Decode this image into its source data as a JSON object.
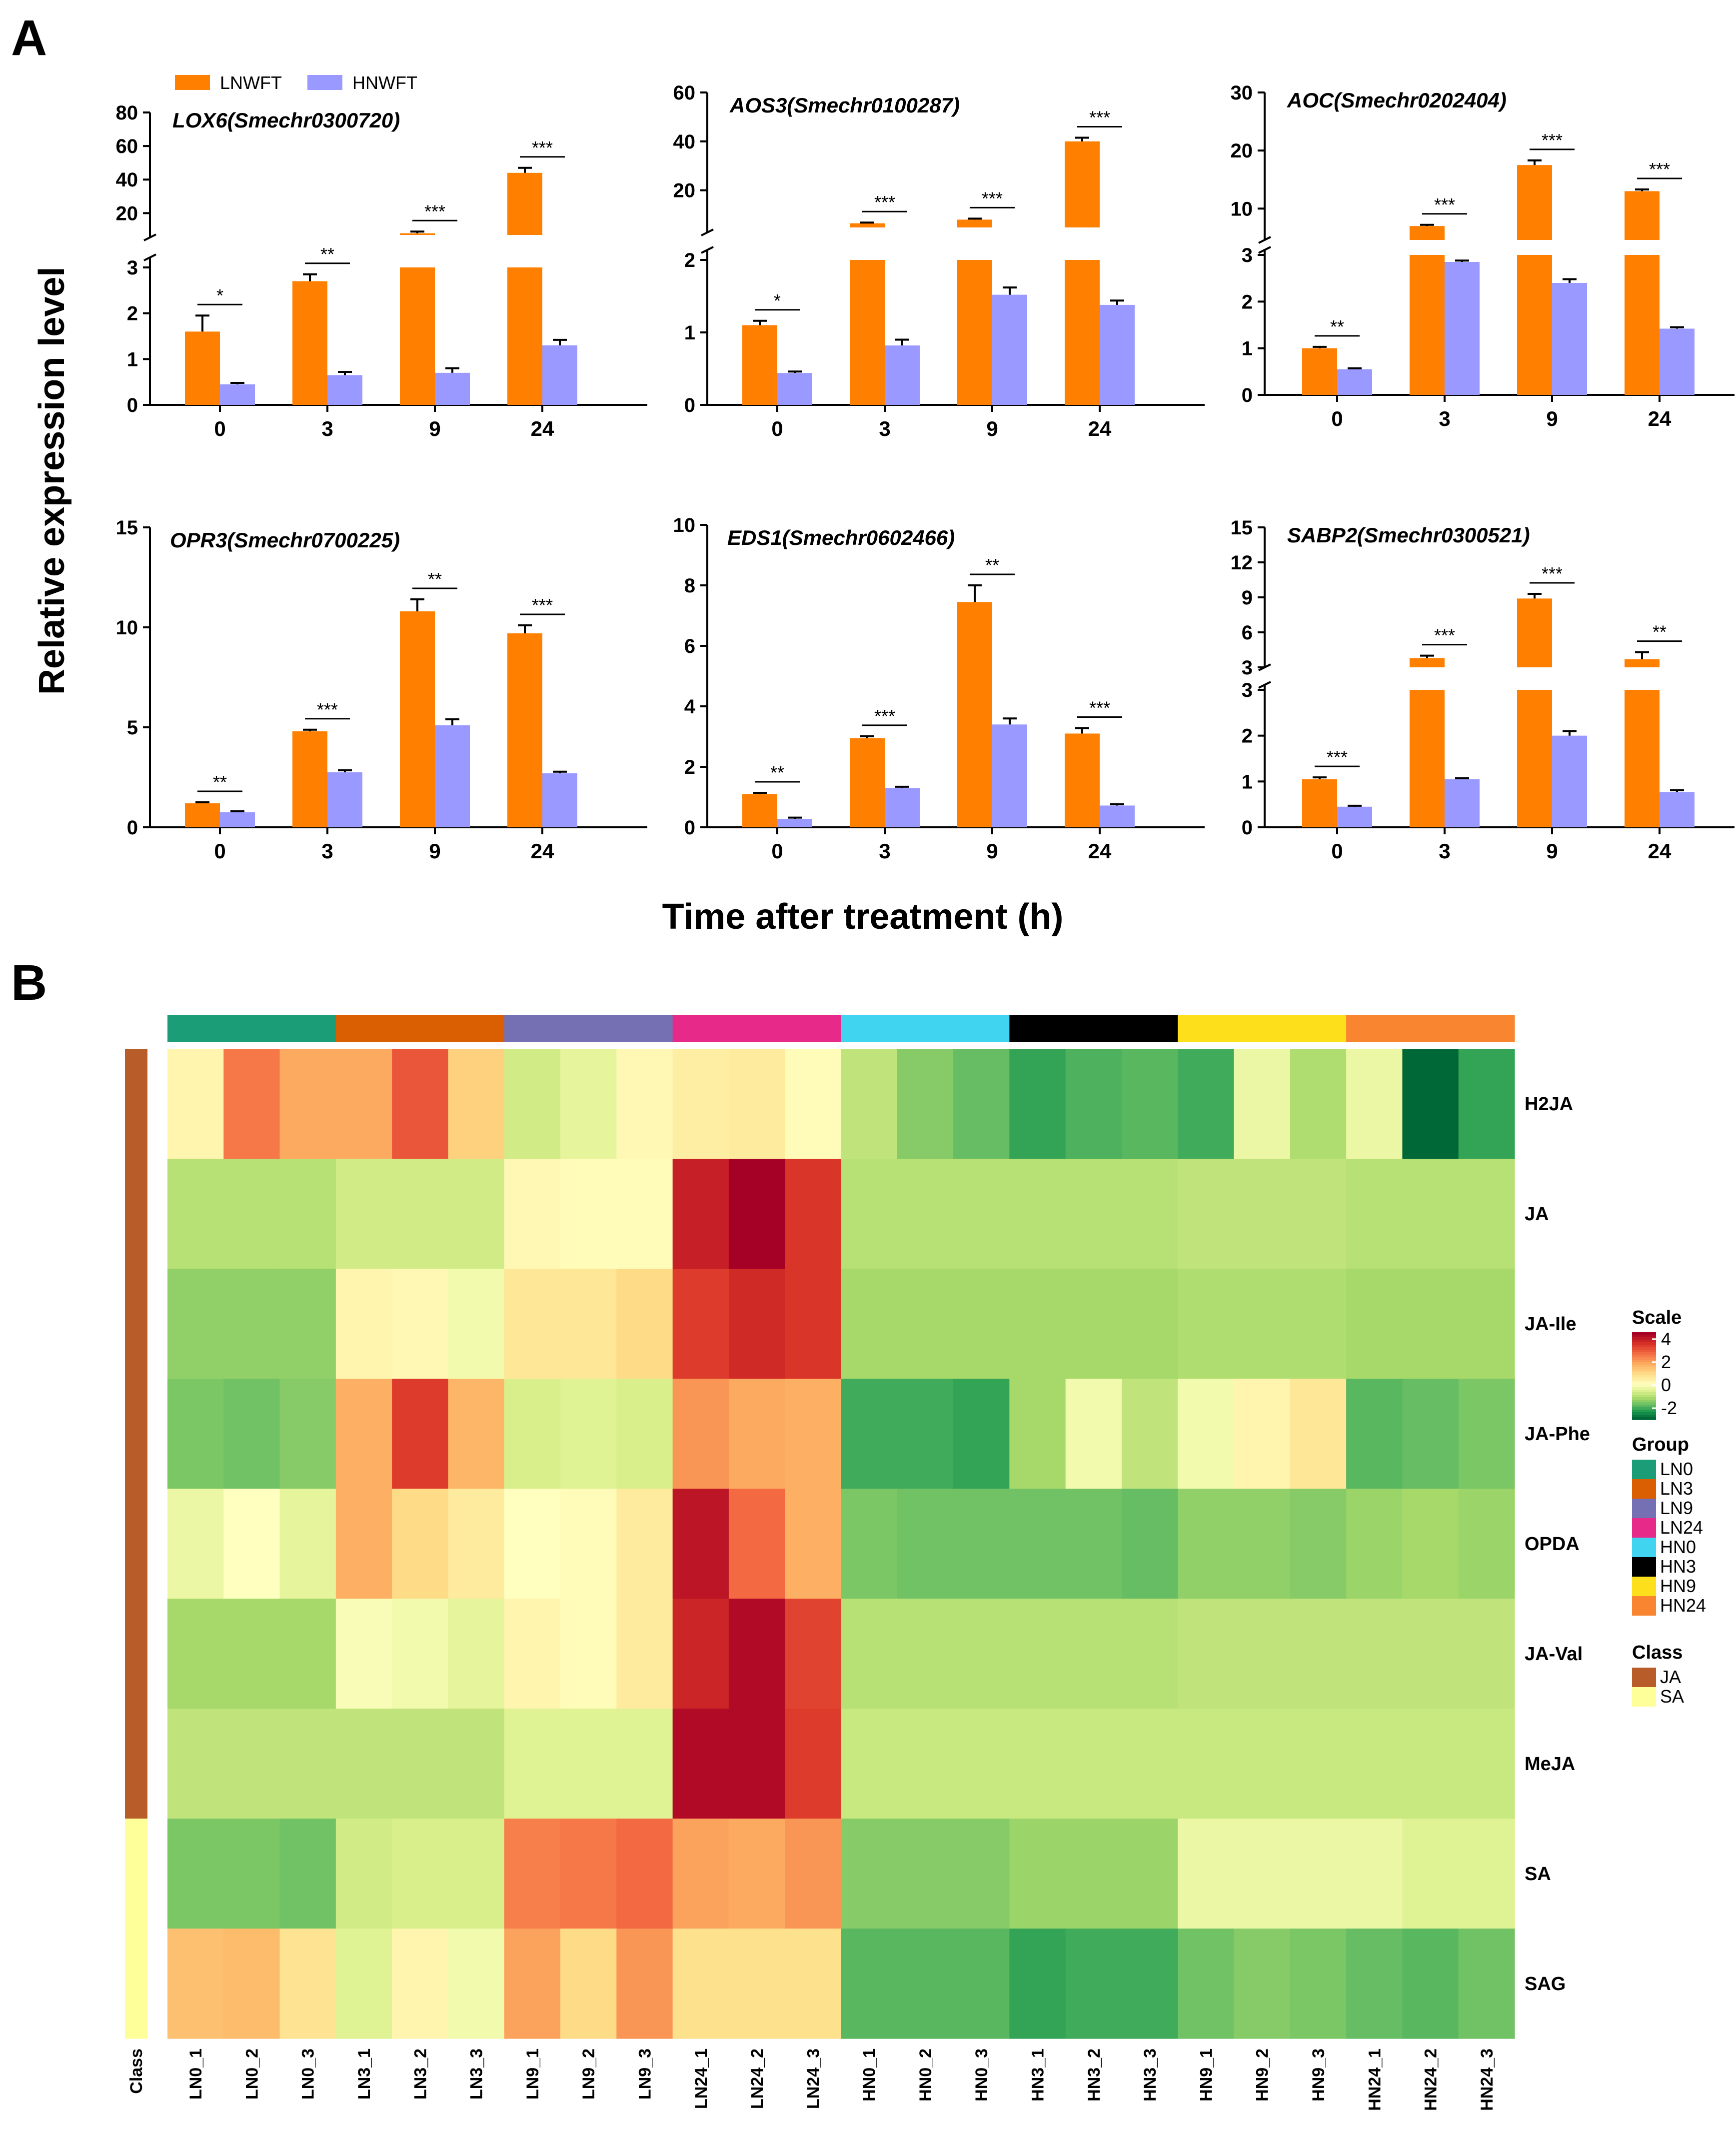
{
  "panel_labels": {
    "a": "A",
    "b": "B"
  },
  "panel_a": {
    "y_label": "Relative expression level",
    "x_label": "Time after treatment (h)",
    "legend": [
      {
        "name": "LNWFT",
        "color": "#ff8000"
      },
      {
        "name": "HNWFT",
        "color": "#9999ff"
      }
    ]
  },
  "chart_data": [
    {
      "type": "bar",
      "title": "LOX6(Smechr0300720)",
      "categories": [
        "0",
        "3",
        "9",
        "24"
      ],
      "series": [
        {
          "name": "LNWFT",
          "values": [
            1.6,
            2.7,
            8,
            44
          ],
          "errors": [
            0.35,
            0.15,
            1,
            3
          ]
        },
        {
          "name": "HNWFT",
          "values": [
            0.45,
            0.65,
            0.7,
            1.3
          ],
          "errors": [
            0.03,
            0.07,
            0.1,
            0.12
          ]
        }
      ],
      "significance": [
        "*",
        "**",
        "***",
        "***"
      ],
      "axis_break": {
        "lower": [
          0,
          3
        ],
        "upper": [
          0,
          80
        ]
      },
      "yticks_lower": [
        "0",
        "1",
        "2",
        "3"
      ],
      "yticks_upper": [
        "20",
        "40",
        "60",
        "80"
      ],
      "yticks_lower_values": [
        0,
        1,
        2,
        3
      ],
      "yticks_upper_values": [
        20,
        40,
        60,
        80
      ],
      "upper_visible_from": 7
    },
    {
      "type": "bar",
      "title": "AOS3(Smechr0100287)",
      "categories": [
        "0",
        "3",
        "9",
        "24"
      ],
      "series": [
        {
          "name": "LNWFT",
          "values": [
            1.1,
            6.5,
            8,
            40
          ],
          "errors": [
            0.06,
            0.3,
            0.4,
            1.5
          ]
        },
        {
          "name": "HNWFT",
          "values": [
            0.44,
            0.82,
            1.52,
            1.38
          ],
          "errors": [
            0.02,
            0.08,
            0.1,
            0.06
          ]
        }
      ],
      "significance": [
        "*",
        "***",
        "***",
        "***"
      ],
      "axis_break": {
        "lower": [
          0,
          2
        ],
        "upper": [
          0,
          60
        ]
      },
      "yticks_lower": [
        "0",
        "1",
        "2"
      ],
      "yticks_upper": [
        "20",
        "40",
        "60"
      ],
      "yticks_lower_values": [
        0,
        1,
        2
      ],
      "yticks_upper_values": [
        20,
        40,
        60
      ],
      "upper_visible_from": 4.8
    },
    {
      "type": "bar",
      "title": "AOC(Smechr0202404)",
      "categories": [
        "0",
        "3",
        "9",
        "24"
      ],
      "series": [
        {
          "name": "LNWFT",
          "values": [
            1.0,
            7,
            17.5,
            13
          ],
          "errors": [
            0.03,
            0.2,
            0.8,
            0.3
          ]
        },
        {
          "name": "HNWFT",
          "values": [
            0.55,
            2.85,
            2.4,
            1.42
          ],
          "errors": [
            0.02,
            0.03,
            0.08,
            0.03
          ]
        }
      ],
      "significance": [
        "**",
        "***",
        "***",
        "***"
      ],
      "axis_break": {
        "lower": [
          0,
          3
        ],
        "upper": [
          0,
          30
        ]
      },
      "yticks_lower": [
        "0",
        "1",
        "2",
        "3"
      ],
      "yticks_upper": [
        "10",
        "20",
        "30"
      ],
      "yticks_lower_values": [
        0,
        1,
        2,
        3
      ],
      "yticks_upper_values": [
        10,
        20,
        30
      ],
      "upper_visible_from": 4.6
    },
    {
      "type": "bar",
      "title": "OPR3(Smechr0700225)",
      "categories": [
        "0",
        "3",
        "9",
        "24"
      ],
      "series": [
        {
          "name": "LNWFT",
          "values": [
            1.2,
            4.8,
            10.8,
            9.7
          ],
          "errors": [
            0.05,
            0.08,
            0.6,
            0.4
          ]
        },
        {
          "name": "HNWFT",
          "values": [
            0.75,
            2.75,
            5.1,
            2.7
          ],
          "errors": [
            0.05,
            0.1,
            0.3,
            0.08
          ]
        }
      ],
      "significance": [
        "**",
        "***",
        "**",
        "***"
      ],
      "ylim": [
        0,
        15
      ],
      "yticks": [
        "0",
        "5",
        "10",
        "15"
      ],
      "yticks_values": [
        0,
        5,
        10,
        15
      ]
    },
    {
      "type": "bar",
      "title": "EDS1(Smechr0602466)",
      "categories": [
        "0",
        "3",
        "9",
        "24"
      ],
      "series": [
        {
          "name": "LNWFT",
          "values": [
            1.1,
            2.95,
            7.45,
            3.1
          ],
          "errors": [
            0.04,
            0.06,
            0.55,
            0.18
          ]
        },
        {
          "name": "HNWFT",
          "values": [
            0.28,
            1.3,
            3.4,
            0.72
          ],
          "errors": [
            0.04,
            0.04,
            0.2,
            0.04
          ]
        }
      ],
      "significance": [
        "**",
        "***",
        "**",
        "***"
      ],
      "ylim": [
        0,
        10
      ],
      "yticks": [
        "0",
        "2",
        "4",
        "6",
        "8",
        "10"
      ],
      "yticks_values": [
        0,
        2,
        4,
        6,
        8,
        10
      ]
    },
    {
      "type": "bar",
      "title": "SABP2(Smechr0300521)",
      "categories": [
        "0",
        "3",
        "9",
        "24"
      ],
      "series": [
        {
          "name": "LNWFT",
          "values": [
            1.05,
            3.8,
            8.9,
            3.7
          ],
          "errors": [
            0.04,
            0.2,
            0.4,
            0.6
          ]
        },
        {
          "name": "HNWFT",
          "values": [
            0.45,
            1.05,
            2.0,
            0.77
          ],
          "errors": [
            0.02,
            0.02,
            0.1,
            0.04
          ]
        }
      ],
      "significance": [
        "***",
        "***",
        "***",
        "**"
      ],
      "axis_break": {
        "lower": [
          0,
          3
        ],
        "upper": [
          3,
          15
        ]
      },
      "yticks_lower": [
        "0",
        "1",
        "2",
        "3"
      ],
      "yticks_upper": [
        "3",
        "6",
        "9",
        "12",
        "15"
      ],
      "yticks_lower_values": [
        0,
        1,
        2,
        3
      ],
      "yticks_upper_values": [
        3,
        6,
        9,
        12,
        15
      ],
      "upper_visible_from": 3
    },
    {
      "type": "heatmap",
      "rows": [
        "H2JA",
        "JA",
        "JA-Ile",
        "JA-Phe",
        "OPDA",
        "JA-Val",
        "MeJA",
        "SA",
        "SAG"
      ],
      "columns": [
        "LN0_1",
        "LN0_2",
        "LN0_3",
        "LN3_1",
        "LN3_2",
        "LN3_3",
        "LN9_1",
        "LN9_2",
        "LN9_3",
        "LN24_1",
        "LN24_2",
        "LN24_3",
        "HN0_1",
        "HN0_2",
        "HN0_3",
        "HN3_1",
        "HN3_2",
        "HN3_3",
        "HN9_1",
        "HN9_2",
        "HN9_3",
        "HN24_1",
        "HN24_2",
        "HN24_3"
      ],
      "values": [
        [
          0.3,
          2.6,
          1.9,
          1.9,
          3.1,
          1.2,
          -0.7,
          -0.4,
          0.2,
          0.5,
          0.6,
          0.1,
          -0.9,
          -1.5,
          -1.8,
          -2.2,
          -2.0,
          -1.9,
          -2.1,
          -0.3,
          -1.1,
          -0.3,
          -3.0,
          -2.2
        ],
        [
          -1.0,
          -1.0,
          -1.0,
          -0.7,
          -0.7,
          -0.7,
          0.2,
          0.1,
          0.1,
          4.0,
          4.6,
          3.6,
          -1.0,
          -1.0,
          -1.0,
          -1.0,
          -1.0,
          -1.0,
          -0.9,
          -0.9,
          -0.9,
          -1.0,
          -1.0,
          -1.0
        ],
        [
          -1.4,
          -1.4,
          -1.4,
          0.3,
          0.2,
          -0.2,
          0.7,
          0.7,
          1.0,
          3.5,
          3.8,
          3.6,
          -1.2,
          -1.2,
          -1.2,
          -1.2,
          -1.2,
          -1.2,
          -1.1,
          -1.1,
          -1.1,
          -1.2,
          -1.2,
          -1.2
        ],
        [
          -1.6,
          -1.7,
          -1.5,
          1.8,
          3.5,
          1.7,
          -0.6,
          -0.5,
          -0.6,
          2.2,
          1.9,
          1.8,
          -2.1,
          -2.1,
          -2.2,
          -1.2,
          -0.2,
          -0.9,
          -0.2,
          0.3,
          0.7,
          -1.9,
          -1.8,
          -1.6
        ],
        [
          -0.3,
          0.0,
          -0.4,
          1.8,
          1.0,
          0.6,
          0.0,
          0.1,
          0.6,
          4.2,
          2.8,
          1.8,
          -1.6,
          -1.7,
          -1.7,
          -1.7,
          -1.7,
          -1.8,
          -1.4,
          -1.4,
          -1.5,
          -1.3,
          -1.2,
          -1.3
        ],
        [
          -1.2,
          -1.2,
          -1.2,
          -0.1,
          -0.2,
          -0.4,
          0.3,
          0.1,
          0.6,
          3.9,
          4.4,
          3.4,
          -1.0,
          -1.0,
          -1.0,
          -1.0,
          -1.0,
          -1.0,
          -0.9,
          -0.9,
          -0.9,
          -0.9,
          -0.9,
          -0.9
        ],
        [
          -0.9,
          -0.9,
          -0.9,
          -0.9,
          -0.9,
          -0.9,
          -0.5,
          -0.5,
          -0.5,
          4.4,
          4.4,
          3.5,
          -0.8,
          -0.8,
          -0.8,
          -0.8,
          -0.8,
          -0.8,
          -0.8,
          -0.8,
          -0.8,
          -0.8,
          -0.8,
          -0.8
        ],
        [
          -1.6,
          -1.6,
          -1.7,
          -0.7,
          -0.6,
          -0.6,
          2.5,
          2.6,
          2.8,
          2.0,
          1.9,
          2.2,
          -1.5,
          -1.5,
          -1.5,
          -1.3,
          -1.3,
          -1.3,
          -0.3,
          -0.3,
          -0.3,
          -0.3,
          -0.5,
          -0.5
        ],
        [
          1.5,
          1.6,
          0.8,
          -0.5,
          0.3,
          -0.2,
          2.0,
          1.0,
          2.2,
          0.9,
          0.9,
          0.9,
          -1.9,
          -1.9,
          -1.9,
          -2.2,
          -2.1,
          -2.1,
          -1.7,
          -1.5,
          -1.6,
          -1.8,
          -1.9,
          -1.7
        ]
      ],
      "groups": [
        {
          "name": "LN0",
          "color": "#1b9e77"
        },
        {
          "name": "LN3",
          "color": "#d95f02"
        },
        {
          "name": "LN9",
          "color": "#7570b3"
        },
        {
          "name": "LN24",
          "color": "#e7298a"
        },
        {
          "name": "HN0",
          "color": "#40d4f0"
        },
        {
          "name": "HN3",
          "color": "#000000"
        },
        {
          "name": "HN9",
          "color": "#fddf1b"
        },
        {
          "name": "HN24",
          "color": "#f98530"
        }
      ],
      "row_classes": [
        "JA",
        "JA",
        "JA",
        "JA",
        "JA",
        "JA",
        "JA",
        "SA",
        "SA"
      ],
      "classes": [
        {
          "name": "JA",
          "color": "#b85c2a"
        },
        {
          "name": "SA",
          "color": "#ffff99"
        }
      ],
      "class_axis_label": "Class",
      "legend": {
        "scale_title": "Scale",
        "scale_ticks": [
          "4",
          "2",
          "0",
          "-2"
        ],
        "scale_values": [
          4,
          2,
          0,
          -2
        ],
        "group_title": "Group",
        "class_title": "Class"
      },
      "color_scale": [
        "#006837",
        "#1a9850",
        "#66bd63",
        "#a6d96a",
        "#d9ef8b",
        "#ffffbf",
        "#fee08b",
        "#fdae61",
        "#f46d43",
        "#d73027",
        "#a50026"
      ]
    }
  ]
}
